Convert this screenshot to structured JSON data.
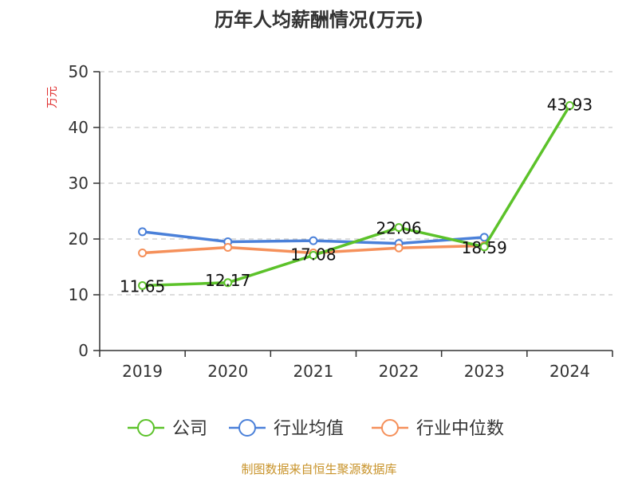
{
  "chart_data": {
    "type": "line",
    "title": "历年人均薪酬情况(万元)",
    "ylabel": "万元",
    "xlabel": "",
    "categories": [
      "2019",
      "2020",
      "2021",
      "2022",
      "2023",
      "2024"
    ],
    "ylim": [
      0,
      50
    ],
    "yticks": [
      0,
      10,
      20,
      30,
      40,
      50
    ],
    "grid": true,
    "legend_position": "bottom",
    "series": [
      {
        "name": "公司",
        "color": "#5cc22a",
        "values": [
          11.65,
          12.17,
          17.08,
          22.06,
          18.59,
          43.93
        ],
        "data_labels": [
          "11.65",
          "12.17",
          "17.08",
          "22.06",
          "18.59",
          "43.93"
        ]
      },
      {
        "name": "行业均值",
        "color": "#4a80d9",
        "values": [
          21.3,
          19.5,
          19.7,
          19.2,
          20.3,
          null
        ]
      },
      {
        "name": "行业中位数",
        "color": "#f5905a",
        "values": [
          17.5,
          18.5,
          17.5,
          18.4,
          18.8,
          null
        ]
      }
    ]
  },
  "footer": {
    "source": "制图数据来自恒生聚源数据库"
  }
}
